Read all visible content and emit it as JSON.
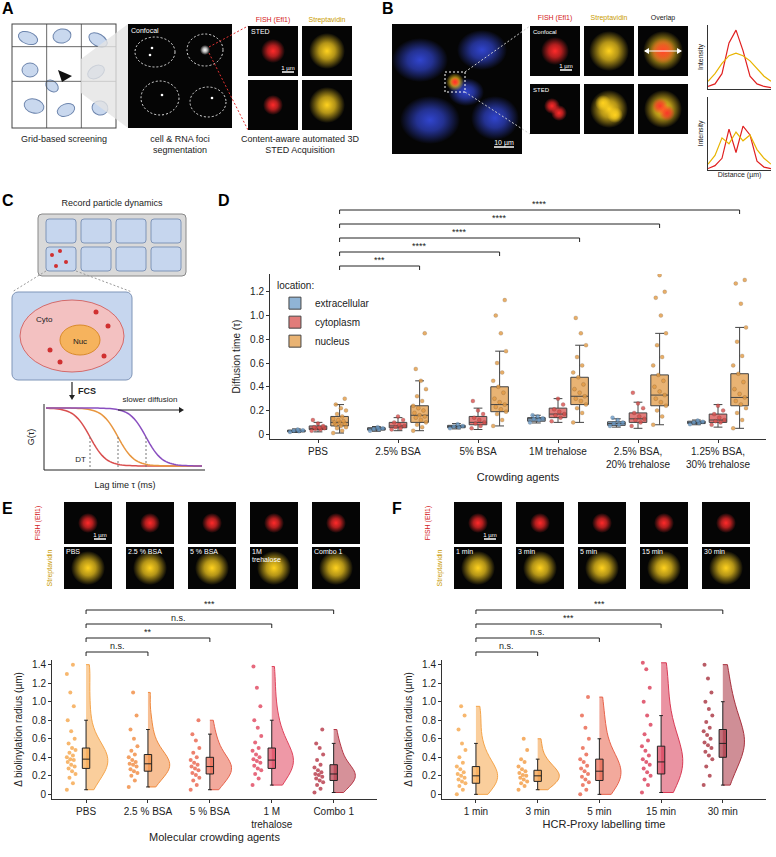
{
  "chart_data": [
    {
      "type": "line",
      "x": [
        0,
        0.2,
        0.4,
        0.6,
        0.8,
        1,
        1.2,
        1.4,
        1.6,
        1.8
      ],
      "series": [
        {
          "color": "#e02020",
          "values": [
            10,
            20,
            60,
            180,
            230,
            150,
            50,
            20,
            10,
            5
          ]
        },
        {
          "color": "#e8b400",
          "values": [
            30,
            60,
            100,
            130,
            140,
            130,
            110,
            80,
            50,
            30
          ]
        }
      ],
      "xlim": [
        0,
        1.8
      ],
      "ylim": [
        0,
        250
      ],
      "y_label": "Intensity",
      "tick_labels": false
    },
    {
      "type": "line",
      "x": [
        0,
        0.2,
        0.4,
        0.6,
        0.8,
        1,
        1.2,
        1.4,
        1.6,
        1.8
      ],
      "series": [
        {
          "color": "#e02020",
          "values": [
            5,
            15,
            40,
            140,
            60,
            150,
            120,
            30,
            10,
            5
          ]
        },
        {
          "color": "#e8b400",
          "values": [
            20,
            50,
            110,
            90,
            130,
            100,
            120,
            70,
            40,
            20
          ]
        }
      ],
      "xlim": [
        0,
        1.8
      ],
      "ylim": [
        0,
        250
      ],
      "y_label": "Intensity",
      "x_label": "Distance (µm)",
      "tick_labels": false
    },
    {
      "panel": "D",
      "type": "box",
      "x_label": "Crowding agents",
      "y_label": "Diffusion time (τ)",
      "categories": [
        "PBS",
        "2.5% BSA",
        "5% BSA",
        "1M trehalose",
        "2.5% BSA, 20% trehalose",
        "1.25% BSA, 30% trehalose"
      ],
      "legend": "upper left",
      "legend_title": "location:",
      "grid": false,
      "ylim": [
        -0.04,
        1.35
      ],
      "yticks": [
        0,
        0.2,
        0.4,
        0.6,
        0.8,
        {
          "value": 1,
          "label": "1.0"
        },
        1.2
      ],
      "series": [
        {
          "name": "extracellular",
          "color": "#6b9bc7",
          "q1": [
            0.02,
            0.035,
            0.055,
            0.11,
            0.075,
            0.09
          ],
          "median": [
            0.03,
            0.045,
            0.065,
            0.13,
            0.09,
            0.1
          ],
          "q3": [
            0.035,
            0.055,
            0.075,
            0.14,
            0.105,
            0.11
          ],
          "whisker_low": [
            0.015,
            0.025,
            0.045,
            0.095,
            0.06,
            0.08
          ],
          "whisker_high": [
            0.045,
            0.065,
            0.09,
            0.16,
            0.13,
            0.12
          ],
          "points": [
            [
              0.02,
              0.025,
              0.03,
              0.033,
              0.04
            ],
            [
              0.03,
              0.04,
              0.045,
              0.05,
              0.06
            ],
            [
              0.05,
              0.06,
              0.065,
              0.07,
              0.085
            ],
            [
              0.1,
              0.12,
              0.13,
              0.135,
              0.15,
              0.16
            ],
            [
              0.07,
              0.08,
              0.09,
              0.1,
              0.12,
              0.14
            ],
            [
              0.085,
              0.095,
              0.1,
              0.105,
              0.115
            ]
          ]
        },
        {
          "name": "cytoplasm",
          "color": "#d8504d",
          "q1": [
            0.04,
            0.055,
            0.08,
            0.14,
            0.1,
            0.1
          ],
          "median": [
            0.05,
            0.07,
            0.1,
            0.17,
            0.13,
            0.12
          ],
          "q3": [
            0.07,
            0.1,
            0.15,
            0.22,
            0.18,
            0.17
          ],
          "whisker_low": [
            0.02,
            0.03,
            0.04,
            0.1,
            0.05,
            0.06
          ],
          "whisker_high": [
            0.1,
            0.14,
            0.22,
            0.3,
            0.27,
            0.25
          ],
          "points": [
            [
              0.03,
              0.04,
              0.045,
              0.05,
              0.055,
              0.06,
              0.07,
              0.09,
              0.12
            ],
            [
              0.04,
              0.05,
              0.06,
              0.07,
              0.08,
              0.1,
              0.12,
              0.15
            ],
            [
              0.05,
              0.07,
              0.09,
              0.1,
              0.12,
              0.14,
              0.17,
              0.2,
              0.28
            ],
            [
              0.11,
              0.14,
              0.16,
              0.17,
              0.19,
              0.21,
              0.25,
              0.3
            ],
            [
              0.07,
              0.1,
              0.12,
              0.13,
              0.15,
              0.18,
              0.22,
              0.26,
              0.35
            ],
            [
              0.08,
              0.1,
              0.11,
              0.12,
              0.14,
              0.17,
              0.2,
              0.24
            ]
          ]
        },
        {
          "name": "nucleus",
          "color": "#e29a44",
          "q1": [
            0.07,
            0.1,
            0.19,
            0.25,
            0.24,
            0.24
          ],
          "median": [
            0.1,
            0.16,
            0.25,
            0.32,
            0.33,
            0.31
          ],
          "q3": [
            0.15,
            0.24,
            0.4,
            0.48,
            0.5,
            0.51
          ],
          "whisker_low": [
            0.01,
            0.03,
            0.07,
            0.1,
            0.08,
            0.05
          ],
          "whisker_high": [
            0.25,
            0.45,
            0.7,
            0.75,
            0.85,
            0.9
          ],
          "points": [
            [
              0.01,
              0.03,
              0.05,
              0.06,
              0.07,
              0.08,
              0.09,
              0.1,
              0.1,
              0.11,
              0.12,
              0.13,
              0.15,
              0.17,
              0.2,
              0.22,
              0.25,
              0.3
            ],
            [
              0.03,
              0.06,
              0.08,
              0.1,
              0.12,
              0.14,
              0.15,
              0.16,
              0.18,
              0.2,
              0.22,
              0.24,
              0.28,
              0.32,
              0.38,
              0.45,
              0.55,
              0.85
            ],
            [
              0.07,
              0.12,
              0.17,
              0.19,
              0.21,
              0.23,
              0.25,
              0.27,
              0.3,
              0.35,
              0.4,
              0.45,
              0.52,
              0.6,
              0.7,
              0.85,
              1.0,
              1.13
            ],
            [
              0.1,
              0.18,
              0.22,
              0.25,
              0.28,
              0.3,
              0.32,
              0.35,
              0.38,
              0.42,
              0.48,
              0.52,
              0.58,
              0.65,
              0.75,
              0.85,
              0.98
            ],
            [
              0.08,
              0.15,
              0.2,
              0.24,
              0.27,
              0.3,
              0.33,
              0.36,
              0.4,
              0.45,
              0.5,
              0.58,
              0.65,
              0.75,
              0.85,
              1.0,
              1.15,
              1.2,
              1.34
            ],
            [
              0.05,
              0.12,
              0.18,
              0.22,
              0.25,
              0.28,
              0.31,
              0.34,
              0.38,
              0.44,
              0.51,
              0.58,
              0.66,
              0.78,
              0.9,
              1.1,
              1.27,
              1.3
            ]
          ]
        }
      ],
      "significance": [
        {
          "from": "PBS",
          "to": "2.5% BSA",
          "label": "***"
        },
        {
          "from": "PBS",
          "to": "5% BSA",
          "label": "****"
        },
        {
          "from": "PBS",
          "to": "1M trehalose",
          "label": "****"
        },
        {
          "from": "PBS",
          "to": "2.5% BSA, 20% trehalose",
          "label": "****"
        },
        {
          "from": "PBS",
          "to": "1.25% BSA, 30% trehalose",
          "label": "****"
        }
      ]
    },
    {
      "panel": "E",
      "type": "raincloud",
      "x_label": "Molecular crowding agents",
      "y_label": "Δ biolinylation radius (µm)",
      "categories": [
        "PBS",
        "2.5 % BSA",
        "5 % BSA",
        "1 M trehalose",
        "Combo 1"
      ],
      "colors": [
        "#f5a54a",
        "#f08a3e",
        "#e8624a",
        "#e0435c",
        "#b53646"
      ],
      "grid": false,
      "ylim": [
        -0.05,
        1.45
      ],
      "yticks": [
        0,
        0.2,
        0.4,
        0.6,
        0.8,
        {
          "value": 1,
          "label": "1.0"
        },
        1.2,
        1.4
      ],
      "q1": [
        0.28,
        0.25,
        0.22,
        0.28,
        0.15
      ],
      "median": [
        0.38,
        0.33,
        0.3,
        0.37,
        0.22
      ],
      "q3": [
        0.5,
        0.43,
        0.4,
        0.5,
        0.32
      ],
      "whisker_low": [
        0.05,
        0.08,
        0.05,
        0.1,
        0.02
      ],
      "whisker_high": [
        0.8,
        0.7,
        0.65,
        0.8,
        0.55
      ],
      "points": [
        [
          0.05,
          0.12,
          0.18,
          0.22,
          0.25,
          0.28,
          0.3,
          0.32,
          0.35,
          0.37,
          0.38,
          0.4,
          0.42,
          0.45,
          0.48,
          0.5,
          0.55,
          0.6,
          0.68,
          0.8,
          0.95,
          1.1,
          1.3,
          1.4
        ],
        [
          0.08,
          0.15,
          0.2,
          0.23,
          0.25,
          0.27,
          0.3,
          0.32,
          0.33,
          0.35,
          0.37,
          0.4,
          0.43,
          0.47,
          0.52,
          0.6,
          0.7,
          0.85,
          1.1
        ],
        [
          0.05,
          0.1,
          0.15,
          0.18,
          0.21,
          0.23,
          0.26,
          0.28,
          0.3,
          0.32,
          0.34,
          0.37,
          0.4,
          0.45,
          0.5,
          0.58,
          0.65,
          0.8
        ],
        [
          0.1,
          0.17,
          0.22,
          0.26,
          0.28,
          0.31,
          0.34,
          0.36,
          0.38,
          0.4,
          0.43,
          0.47,
          0.5,
          0.56,
          0.63,
          0.72,
          0.8,
          0.95,
          1.15,
          1.38
        ],
        [
          0.02,
          0.06,
          0.1,
          0.13,
          0.15,
          0.17,
          0.19,
          0.21,
          0.22,
          0.24,
          0.26,
          0.29,
          0.32,
          0.37,
          0.43,
          0.5,
          0.55,
          0.7
        ]
      ],
      "significance": [
        {
          "from": "PBS",
          "to": "2.5 % BSA",
          "label": "n.s."
        },
        {
          "from": "PBS",
          "to": "5 % BSA",
          "label": "**"
        },
        {
          "from": "PBS",
          "to": "1 M trehalose",
          "label": "n.s."
        },
        {
          "from": "PBS",
          "to": "Combo 1",
          "label": "***"
        }
      ],
      "thumbnails": {
        "rows": [
          "FISH (Efl1)",
          "Streptavidin"
        ],
        "labels": [
          "PBS",
          "2.5 % BSA",
          "5 % BSA",
          "1M trehalose",
          "Combo 1"
        ],
        "scale_bar": "1 µm"
      }
    },
    {
      "panel": "F",
      "type": "raincloud",
      "x_label": "HCR-Proxy labelling time",
      "y_label": "Δ biolinylation radius (µm)",
      "categories": [
        "1 min",
        "3 min",
        "5 min",
        "15 min",
        "30 min"
      ],
      "colors": [
        "#f5a54a",
        "#f29a40",
        "#e8624a",
        "#d93a55",
        "#a8323f"
      ],
      "grid": false,
      "ylim": [
        -0.05,
        1.45
      ],
      "yticks": [
        0,
        0.2,
        0.4,
        0.6,
        0.8,
        {
          "value": 1,
          "label": "1.0"
        },
        1.2,
        1.4
      ],
      "q1": [
        0.12,
        0.14,
        0.15,
        0.22,
        0.4
      ],
      "median": [
        0.2,
        0.2,
        0.25,
        0.35,
        0.55
      ],
      "q3": [
        0.3,
        0.26,
        0.38,
        0.52,
        0.7
      ],
      "whisker_low": [
        0.0,
        0.05,
        0.0,
        0.02,
        0.1
      ],
      "whisker_high": [
        0.55,
        0.38,
        0.6,
        0.85,
        1.0
      ],
      "points": [
        [
          0.0,
          0.05,
          0.09,
          0.12,
          0.14,
          0.16,
          0.18,
          0.2,
          0.22,
          0.24,
          0.27,
          0.3,
          0.34,
          0.4,
          0.48,
          0.55,
          0.7,
          0.85,
          0.95
        ],
        [
          0.05,
          0.09,
          0.12,
          0.14,
          0.16,
          0.18,
          0.2,
          0.21,
          0.23,
          0.25,
          0.27,
          0.3,
          0.35,
          0.38,
          0.48,
          0.6
        ],
        [
          0.0,
          0.05,
          0.1,
          0.13,
          0.16,
          0.19,
          0.22,
          0.25,
          0.28,
          0.31,
          0.35,
          0.38,
          0.43,
          0.5,
          0.6,
          0.72,
          0.85,
          1.05
        ],
        [
          0.02,
          0.1,
          0.16,
          0.2,
          0.24,
          0.28,
          0.32,
          0.35,
          0.38,
          0.42,
          0.47,
          0.52,
          0.58,
          0.65,
          0.75,
          0.85,
          1.0,
          1.15,
          1.35,
          1.42
        ],
        [
          0.1,
          0.2,
          0.3,
          0.38,
          0.42,
          0.46,
          0.5,
          0.53,
          0.56,
          0.6,
          0.64,
          0.68,
          0.72,
          0.78,
          0.85,
          0.92,
          1.0,
          1.1,
          1.25,
          1.4
        ]
      ],
      "significance": [
        {
          "from": "1 min",
          "to": "3 min",
          "label": "n.s."
        },
        {
          "from": "1 min",
          "to": "5 min",
          "label": "n.s."
        },
        {
          "from": "1 min",
          "to": "15 min",
          "label": "***"
        },
        {
          "from": "1 min",
          "to": "30 min",
          "label": "***"
        }
      ],
      "thumbnails": {
        "rows": [
          "FISH (Efl1)",
          "Streptavidin"
        ],
        "labels": [
          "1 min",
          "3 min",
          "5 min",
          "15 min",
          "30 min"
        ],
        "scale_bar": "1 µm"
      }
    }
  ],
  "diagrams": {
    "A": {
      "panel": "A",
      "steps": [
        "Grid-based screening",
        "cell & RNA foci segmentation",
        "Content-aware automated 3D STED Acquisition"
      ],
      "image_label": "Confocal",
      "channels": [
        "FISH (Efl1)",
        "Streptavidin"
      ],
      "rows": [
        "STED"
      ],
      "scale_bar": "1 µm"
    },
    "B": {
      "panel": "B",
      "scale_bar_large": "10 µm",
      "channels": [
        "FISH (Efl1)",
        "Streptavidin",
        "Overlap"
      ],
      "rows": [
        "Confocal",
        "STED"
      ],
      "scale_bar": "1 µm"
    },
    "C": {
      "panel": "C",
      "title": "Record particle dynamics",
      "compartments": [
        "Cyto",
        "Nuc"
      ],
      "method": "FCS",
      "y_label": "G(τ)",
      "x_label": "Lag time τ (ms)",
      "dt_label": "DT",
      "arrow_label": "slower diffusion"
    }
  }
}
